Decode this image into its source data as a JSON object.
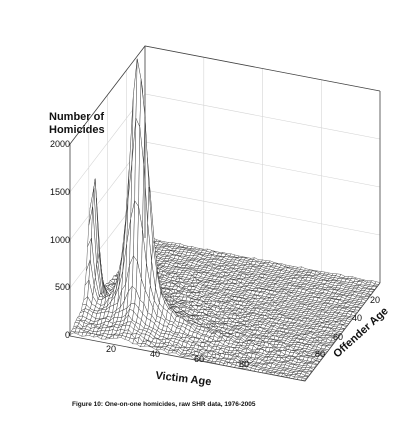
{
  "chart_data": {
    "type": "surface",
    "title": "",
    "zlabel": "Number of Homicides",
    "xlabel": "Victim Age",
    "ylabel": "Offender Age",
    "zlim": [
      0,
      2000
    ],
    "z_ticks": [
      "0",
      "500",
      "1000",
      "1500",
      "2000"
    ],
    "x_ticks": [
      "20",
      "40",
      "60",
      "80"
    ],
    "y_ticks": [
      "20",
      "40",
      "60",
      "80"
    ],
    "grid": true,
    "peaks": [
      {
        "victim_age": 20,
        "offender_age": 20,
        "homicides": 2000
      },
      {
        "victim_age": 1,
        "offender_age": 25,
        "homicides": 1100
      }
    ],
    "caption": "Figure 10: One-on-one homicides, raw SHR data, 1976-2005"
  }
}
